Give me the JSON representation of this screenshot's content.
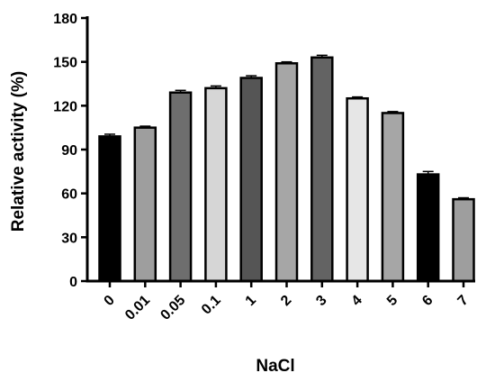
{
  "chart_data": {
    "type": "bar",
    "title": "",
    "xlabel": "NaCl",
    "ylabel": "Relative activity (%)",
    "categories": [
      "0",
      "0.01",
      "0.05",
      "0.1",
      "1",
      "2",
      "3",
      "4",
      "5",
      "6",
      "7"
    ],
    "values": [
      99,
      105,
      129,
      132,
      139,
      149,
      153,
      125,
      115,
      73,
      56
    ],
    "errors": [
      1.5,
      1,
      1.5,
      1.5,
      1.5,
      1,
      1.5,
      1,
      1,
      2,
      1
    ],
    "bar_colors": [
      "#000000",
      "#9e9e9e",
      "#6e6e6e",
      "#d6d6d6",
      "#555555",
      "#a6a6a6",
      "#636363",
      "#e6e6e6",
      "#a6a6a6",
      "#000000",
      "#9e9e9e"
    ],
    "ylim": [
      0,
      180
    ],
    "yticks": [
      0,
      30,
      60,
      90,
      120,
      150,
      180
    ],
    "grid": false,
    "legend": "none"
  }
}
